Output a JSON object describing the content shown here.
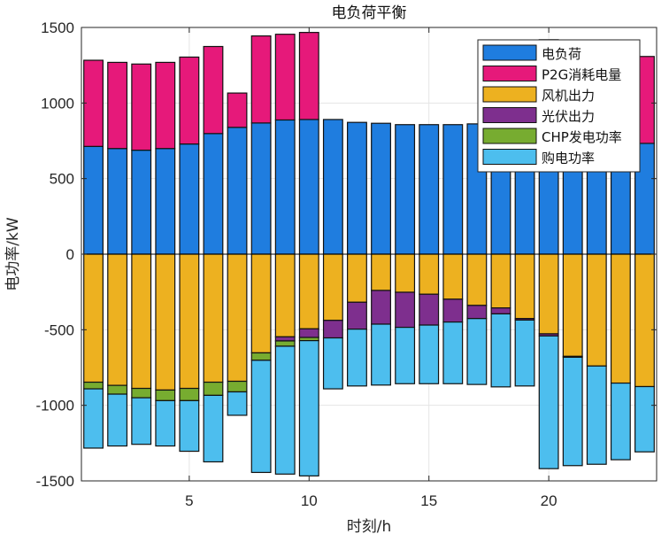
{
  "chart_data": {
    "type": "bar",
    "stacked": true,
    "title": "电负荷平衡",
    "xlabel": "时刻/h",
    "ylabel": "电功率/kW",
    "xlim": [
      0.5,
      24.5
    ],
    "ylim": [
      -1500,
      1500
    ],
    "xticks": [
      5,
      10,
      15,
      20
    ],
    "yticks": [
      -1500,
      -1000,
      -500,
      0,
      500,
      1000,
      1500
    ],
    "grid": true,
    "legend_position": "top-right",
    "x": [
      1,
      2,
      3,
      4,
      5,
      6,
      7,
      8,
      9,
      10,
      11,
      12,
      13,
      14,
      15,
      16,
      17,
      18,
      19,
      20,
      21,
      22,
      23,
      24
    ],
    "series": [
      {
        "name": "电负荷",
        "color": "#1f7ddf",
        "values": [
          713,
          699,
          688,
          699,
          729,
          798,
          839,
          868,
          888,
          891,
          891,
          872,
          866,
          857,
          857,
          857,
          862,
          878,
          872,
          820,
          790,
          770,
          750,
          733
        ]
      },
      {
        "name": "P2G消耗电量",
        "color": "#e6197a",
        "values": [
          570,
          570,
          570,
          570,
          575,
          576,
          227,
          576,
          567,
          576,
          0,
          0,
          0,
          0,
          0,
          0,
          0,
          0,
          0,
          599,
          609,
          620,
          610,
          575
        ]
      },
      {
        "name": "风机出力",
        "color": "#edb120",
        "values": [
          -847,
          -868,
          -888,
          -899,
          -888,
          -847,
          -841,
          -653,
          -547,
          -494,
          -438,
          -318,
          -240,
          -252,
          -265,
          -298,
          -339,
          -356,
          -426,
          -527,
          -676,
          -740,
          -853,
          -876
        ]
      },
      {
        "name": "光伏出力",
        "color": "#7e2f8e",
        "values": [
          0,
          0,
          0,
          0,
          0,
          0,
          0,
          0,
          -27,
          -57,
          -116,
          -178,
          -223,
          -232,
          -204,
          -151,
          -87,
          -39,
          -10,
          -14,
          -6,
          0,
          0,
          0
        ]
      },
      {
        "name": "CHP发电功率",
        "color": "#77ac30",
        "values": [
          -44,
          -58,
          -62,
          -70,
          -81,
          -87,
          -70,
          -49,
          -35,
          -21,
          0,
          0,
          0,
          0,
          0,
          0,
          0,
          0,
          0,
          0,
          0,
          0,
          0,
          0
        ]
      },
      {
        "name": "购电功率",
        "color": "#4dbeee",
        "values": [
          -392,
          -343,
          -308,
          -300,
          -335,
          -440,
          -155,
          -742,
          -846,
          -895,
          -337,
          -376,
          -403,
          -373,
          -388,
          -408,
          -436,
          -483,
          -436,
          -878,
          -717,
          -650,
          -507,
          -432
        ]
      }
    ]
  }
}
